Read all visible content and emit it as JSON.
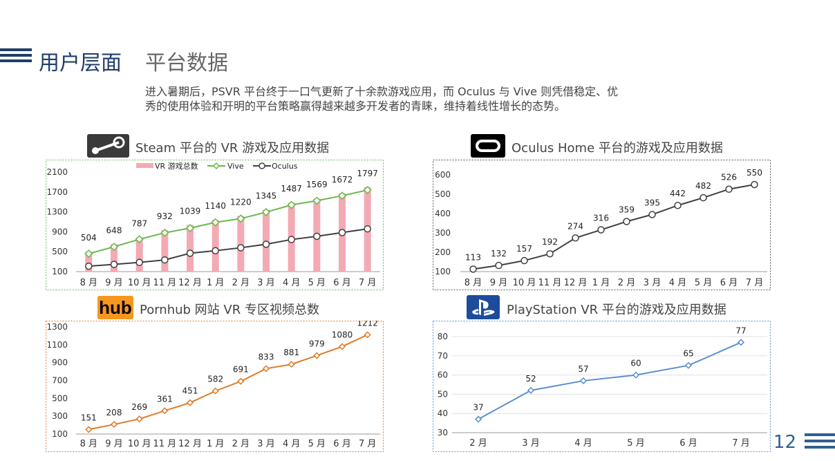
{
  "header": {
    "title": "用户层面",
    "subtitle": "平台数据",
    "description_line1": "进入暑期后，PSVR 平台终于一口气更新了十余款游戏应用，而 Oculus 与 Vive 则凭借稳定、优",
    "description_line2": "秀的使用体验和开明的平台策略赢得越来越多开发者的青睐，维持着线性增长的态势。"
  },
  "logos": {
    "hub": "hub"
  },
  "page_number": "12",
  "colors": {
    "title_blue": "#1f3d6b",
    "steam_bar": "#f4aab3",
    "vive_line": "#6ab84a",
    "oculus_line": "#404040",
    "pornhub_line": "#e07b28",
    "psvr_line": "#5b8fd0"
  },
  "chart_data": [
    {
      "id": "steam",
      "type": "bar",
      "title": "Steam 平台的 VR 游戏及应用数据",
      "categories": [
        "8 月",
        "9 月",
        "10 月",
        "11 月",
        "12 月",
        "1 月",
        "2 月",
        "3 月",
        "4 月",
        "5 月",
        "6 月",
        "7 月"
      ],
      "y_ticks": [
        "2100",
        "1700",
        "1300",
        "900",
        "500",
        "100"
      ],
      "ylim": [
        100,
        2100
      ],
      "legend": [
        "VR 游戏总数",
        "Vive",
        "Oculus"
      ],
      "legend_position": "top",
      "series": [
        {
          "name": "VR 游戏总数",
          "kind": "bar",
          "values": [
            504,
            648,
            787,
            932,
            1039,
            1140,
            1220,
            1345,
            1487,
            1569,
            1672,
            1797
          ]
        },
        {
          "name": "Vive",
          "kind": "line",
          "values": [
            460,
            600,
            750,
            880,
            975,
            1090,
            1165,
            1295,
            1440,
            1525,
            1625,
            1740
          ]
        },
        {
          "name": "Oculus",
          "kind": "line",
          "values": [
            210,
            245,
            285,
            335,
            470,
            520,
            580,
            650,
            745,
            810,
            885,
            960
          ]
        }
      ],
      "data_labels": [
        "504",
        "648",
        "787",
        "932",
        "1039",
        "1140",
        "1220",
        "1345",
        "1487",
        "1569",
        "1672",
        "1797"
      ]
    },
    {
      "id": "oculus",
      "type": "line",
      "title": "Oculus Home 平台的游戏及应用数据",
      "categories": [
        "8 月",
        "9 月",
        "10 月",
        "11 月",
        "12 月",
        "1 月",
        "2 月",
        "3 月",
        "4 月",
        "5 月",
        "6 月",
        "7 月"
      ],
      "y_ticks": [
        "600",
        "500",
        "400",
        "300",
        "200",
        "100"
      ],
      "ylim": [
        100,
        600
      ],
      "series": [
        {
          "values": [
            113,
            132,
            157,
            192,
            274,
            316,
            359,
            395,
            442,
            482,
            526,
            550
          ]
        }
      ],
      "data_labels": [
        "113",
        "132",
        "157",
        "192",
        "274",
        "316",
        "359",
        "395",
        "442",
        "482",
        "526",
        "550"
      ]
    },
    {
      "id": "pornhub",
      "type": "line",
      "title": "Pornhub 网站 VR 专区视频总数",
      "categories": [
        "8 月",
        "9 月",
        "10 月",
        "11 月",
        "12 月",
        "1 月",
        "2 月",
        "3 月",
        "4 月",
        "5 月",
        "6 月",
        "7 月"
      ],
      "y_ticks": [
        "1300",
        "1100",
        "900",
        "700",
        "500",
        "300",
        "100"
      ],
      "ylim": [
        100,
        1300
      ],
      "series": [
        {
          "values": [
            151,
            208,
            269,
            361,
            451,
            582,
            691,
            833,
            881,
            979,
            1080,
            1212
          ]
        }
      ],
      "data_labels": [
        "151",
        "208",
        "269",
        "361",
        "451",
        "582",
        "691",
        "833",
        "881",
        "979",
        "1080",
        "1212"
      ]
    },
    {
      "id": "psvr",
      "type": "line",
      "title": "PlayStation VR 平台的游戏及应用数据",
      "categories": [
        "2 月",
        "3 月",
        "4 月",
        "5 月",
        "6 月",
        "7 月"
      ],
      "y_ticks": [
        "80",
        "70",
        "60",
        "50",
        "40",
        "30"
      ],
      "ylim": [
        30,
        80
      ],
      "grid": true,
      "series": [
        {
          "values": [
            37,
            52,
            57,
            60,
            65,
            77
          ]
        }
      ],
      "data_labels": [
        "37",
        "52",
        "57",
        "60",
        "65",
        "77"
      ]
    }
  ]
}
